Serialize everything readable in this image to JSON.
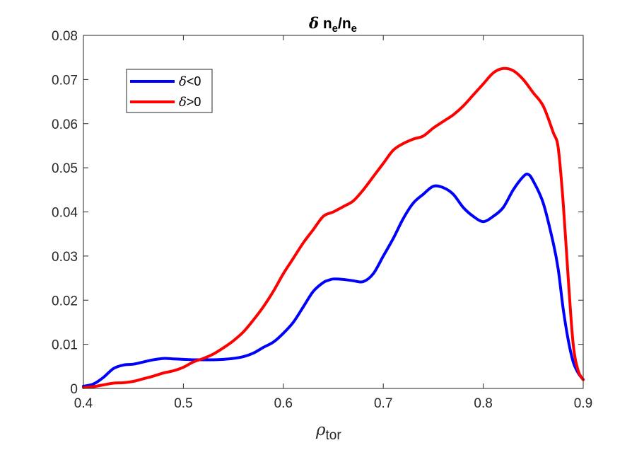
{
  "chart_data": {
    "type": "line",
    "title": {
      "symbol": "δ",
      "base1": " n",
      "sub1": "e",
      "slash": "/n",
      "sub2": "e"
    },
    "xlabel": {
      "base": "ρ",
      "sub": "tor"
    },
    "ylabel": "",
    "xlim": [
      0.4,
      0.9
    ],
    "ylim": [
      0,
      0.08
    ],
    "xticks": [
      "0.4",
      "0.5",
      "0.6",
      "0.7",
      "0.8",
      "0.9"
    ],
    "yticks": [
      "0",
      "0.01",
      "0.02",
      "0.03",
      "0.04",
      "0.05",
      "0.06",
      "0.07",
      "0.08"
    ],
    "grid": false,
    "legend_position": "top-left",
    "series": [
      {
        "name": "δ<0",
        "legend_symbol": "δ",
        "legend_rest": "<0",
        "color": "#0000FF",
        "x": [
          0.4,
          0.41,
          0.42,
          0.43,
          0.44,
          0.45,
          0.46,
          0.47,
          0.48,
          0.49,
          0.5,
          0.51,
          0.52,
          0.53,
          0.54,
          0.55,
          0.56,
          0.57,
          0.58,
          0.59,
          0.6,
          0.61,
          0.62,
          0.63,
          0.64,
          0.645,
          0.65,
          0.66,
          0.67,
          0.68,
          0.69,
          0.7,
          0.71,
          0.72,
          0.73,
          0.74,
          0.75,
          0.76,
          0.77,
          0.78,
          0.79,
          0.8,
          0.81,
          0.82,
          0.83,
          0.84,
          0.845,
          0.85,
          0.86,
          0.87,
          0.875,
          0.88,
          0.885,
          0.89,
          0.895,
          0.9
        ],
        "y": [
          0.0005,
          0.001,
          0.0025,
          0.0045,
          0.0053,
          0.0055,
          0.006,
          0.0065,
          0.0068,
          0.0067,
          0.0066,
          0.0065,
          0.0065,
          0.0065,
          0.0066,
          0.0068,
          0.0072,
          0.008,
          0.0093,
          0.0105,
          0.0125,
          0.015,
          0.0185,
          0.022,
          0.024,
          0.0245,
          0.0248,
          0.0247,
          0.0244,
          0.0242,
          0.026,
          0.03,
          0.034,
          0.0385,
          0.042,
          0.044,
          0.0458,
          0.0455,
          0.044,
          0.041,
          0.039,
          0.0378,
          0.039,
          0.041,
          0.045,
          0.048,
          0.0485,
          0.047,
          0.042,
          0.033,
          0.027,
          0.018,
          0.011,
          0.006,
          0.0035,
          0.002
        ]
      },
      {
        "name": "δ>0",
        "legend_symbol": "δ",
        "legend_rest": ">0",
        "color": "#FF0000",
        "x": [
          0.4,
          0.41,
          0.42,
          0.43,
          0.44,
          0.45,
          0.46,
          0.47,
          0.48,
          0.49,
          0.5,
          0.51,
          0.52,
          0.53,
          0.54,
          0.55,
          0.56,
          0.57,
          0.58,
          0.59,
          0.6,
          0.61,
          0.62,
          0.63,
          0.64,
          0.65,
          0.66,
          0.67,
          0.68,
          0.69,
          0.7,
          0.71,
          0.72,
          0.73,
          0.74,
          0.75,
          0.76,
          0.77,
          0.78,
          0.79,
          0.8,
          0.81,
          0.82,
          0.83,
          0.84,
          0.85,
          0.86,
          0.87,
          0.875,
          0.88,
          0.885,
          0.89,
          0.895,
          0.9
        ],
        "y": [
          0.0002,
          0.0004,
          0.0008,
          0.0012,
          0.0013,
          0.0016,
          0.0022,
          0.0028,
          0.0035,
          0.004,
          0.0048,
          0.006,
          0.0068,
          0.0078,
          0.0092,
          0.0108,
          0.0128,
          0.0155,
          0.0185,
          0.022,
          0.026,
          0.0295,
          0.033,
          0.036,
          0.039,
          0.04,
          0.0412,
          0.0425,
          0.045,
          0.048,
          0.051,
          0.054,
          0.0555,
          0.0565,
          0.0572,
          0.059,
          0.0605,
          0.062,
          0.064,
          0.0665,
          0.069,
          0.0715,
          0.0725,
          0.072,
          0.07,
          0.067,
          0.064,
          0.058,
          0.0545,
          0.042,
          0.025,
          0.01,
          0.004,
          0.002
        ]
      }
    ]
  }
}
